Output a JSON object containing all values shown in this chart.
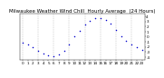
{
  "title": "Milwaukee Weather Wind Chill  Hourly Average  (24 Hours)",
  "hours": [
    0,
    1,
    2,
    3,
    4,
    5,
    6,
    7,
    8,
    9,
    10,
    11,
    12,
    13,
    14,
    15,
    16,
    17,
    18,
    19,
    20,
    21,
    22,
    23
  ],
  "wind_chill": [
    -1.2,
    -1.6,
    -2.1,
    -2.7,
    -3.3,
    -3.6,
    -3.8,
    -3.5,
    -2.8,
    -1.5,
    0.0,
    1.2,
    2.3,
    3.1,
    3.6,
    3.7,
    3.3,
    2.6,
    1.4,
    0.1,
    -0.9,
    -1.6,
    -2.1,
    -2.6
  ],
  "dot_color": "#0000cc",
  "bg_color": "#ffffff",
  "ylim": [
    -4.5,
    4.5
  ],
  "yticks": [
    -4,
    -3,
    -2,
    -1,
    0,
    1,
    2,
    3,
    4
  ],
  "ytick_labels": [
    "-4",
    "-3",
    "-2",
    "-1",
    "0",
    "1",
    "2",
    "3",
    "4"
  ],
  "grid_color": "#999999",
  "title_fontsize": 4.0,
  "tick_fontsize": 3.0,
  "dot_size": 1.2,
  "vgrid_hours": [
    0,
    3,
    6,
    9,
    12,
    15,
    18,
    21
  ]
}
